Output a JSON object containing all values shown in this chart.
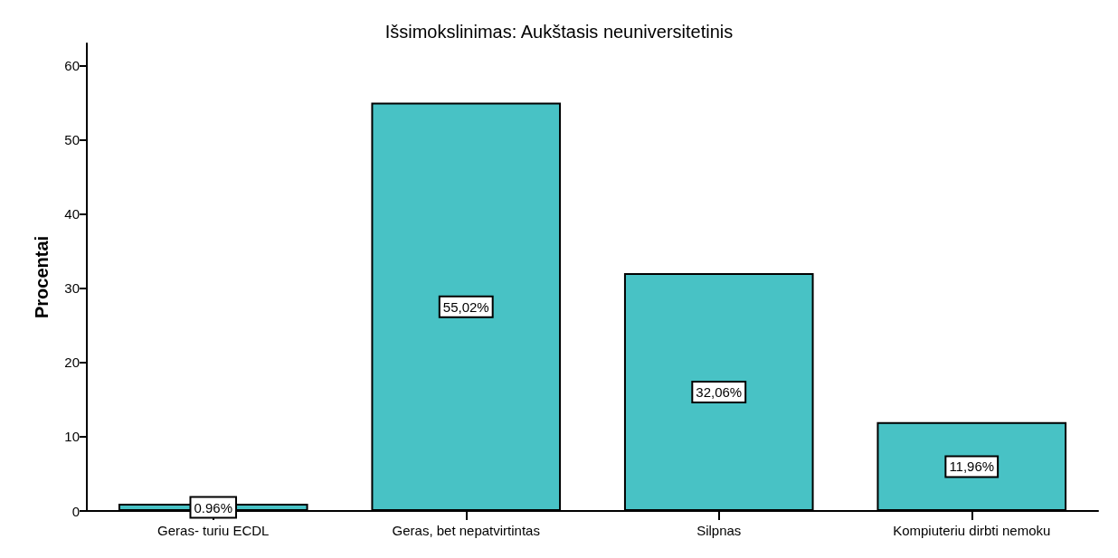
{
  "chart_data": {
    "type": "bar",
    "title": "Išsimokslinimas: Aukštasis neuniversitetinis",
    "ylabel": "Procentai",
    "categories": [
      "Geras- turiu ECDL",
      "Geras, bet nepatvirtintas",
      "Silpnas",
      "Kompiuteriu dirbti nemoku"
    ],
    "values": [
      0.96,
      55.02,
      32.06,
      11.96
    ],
    "value_labels": [
      "0.96%",
      "55,02%",
      "32,06%",
      "11,96%"
    ],
    "color": "#48c2c5",
    "ylim": [
      0,
      63
    ],
    "yticks": [
      0,
      10,
      20,
      30,
      40,
      50,
      60
    ],
    "grid": false
  }
}
